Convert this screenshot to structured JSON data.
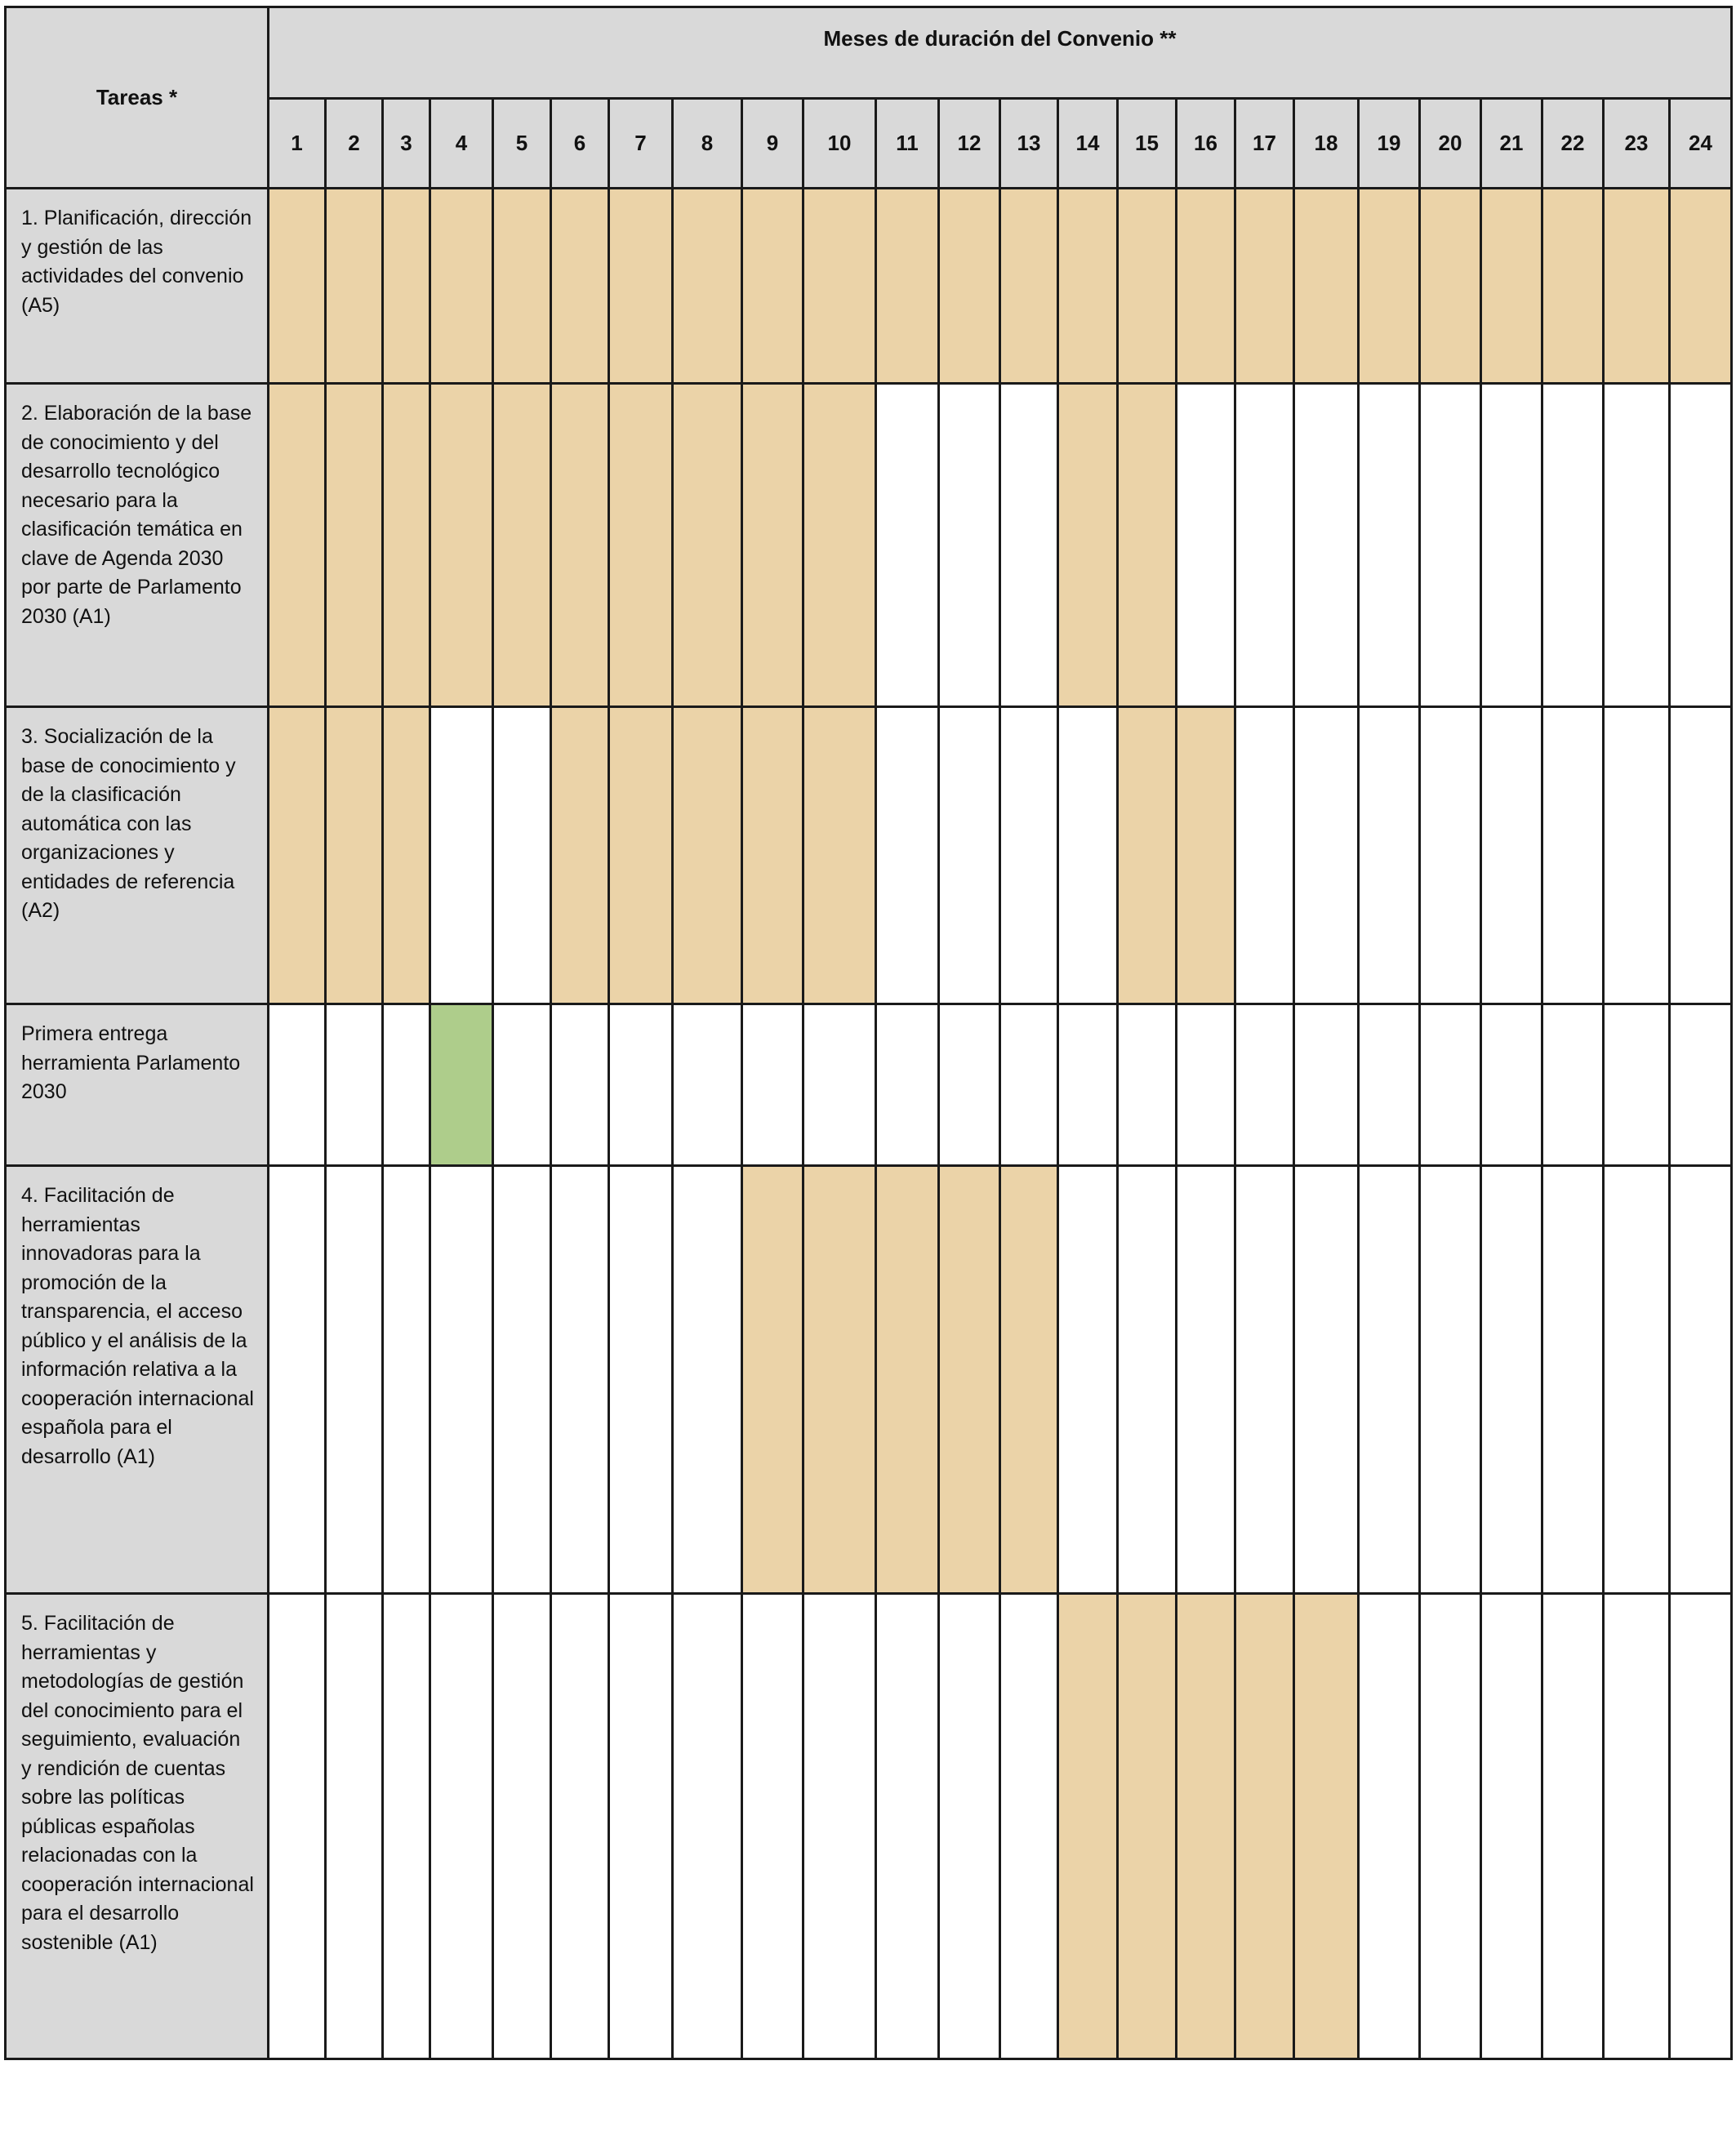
{
  "header": {
    "tasks_label": "Tareas *",
    "months_label": "Meses de duración del Convenio **"
  },
  "colors": {
    "header_bg": "#d9d9d9",
    "activity": "#ebd3a8",
    "milestone": "#aecd8b",
    "empty": "#ffffff"
  },
  "months": [
    "1",
    "2",
    "3",
    "4",
    "5",
    "6",
    "7",
    "8",
    "9",
    "10",
    "11",
    "12",
    "13",
    "14",
    "15",
    "16",
    "17",
    "18",
    "19",
    "20",
    "21",
    "22",
    "23",
    "24"
  ],
  "rows": [
    {
      "label": "1. Planificación, dirección y gestión de las actividades del convenio (A5)",
      "type": "activity",
      "active_months": [
        1,
        2,
        3,
        4,
        5,
        6,
        7,
        8,
        9,
        10,
        11,
        12,
        13,
        14,
        15,
        16,
        17,
        18,
        19,
        20,
        21,
        22,
        23,
        24
      ]
    },
    {
      "label": "2. Elaboración de la base de conocimiento y del desarrollo tecnológico necesario para la clasificación temática en clave de Agenda 2030 por parte de Parlamento 2030 (A1)",
      "type": "activity",
      "active_months": [
        1,
        2,
        3,
        4,
        5,
        6,
        7,
        8,
        9,
        10,
        14,
        15
      ]
    },
    {
      "label": "3. Socialización de la base de conocimiento y de la clasificación automática con las organizaciones y entidades de referencia (A2)",
      "type": "activity",
      "active_months": [
        1,
        2,
        3,
        6,
        7,
        8,
        9,
        10,
        15,
        16
      ]
    },
    {
      "label": "Primera entrega herramienta Parlamento 2030",
      "type": "milestone",
      "active_months": [
        4
      ]
    },
    {
      "label": "4. Facilitación de herramientas innovadoras para la promoción de la transparencia, el acceso público y el análisis de la información relativa a la cooperación internacional española para el desarrollo (A1)",
      "type": "activity",
      "active_months": [
        9,
        10,
        11,
        12,
        13
      ]
    },
    {
      "label": "5. Facilitación de herramientas y metodologías de gestión del conocimiento para el seguimiento, evaluación y rendición de cuentas sobre las políticas públicas españolas relacionadas con la cooperación internacional para el desarrollo sostenible (A1)",
      "type": "activity",
      "active_months": [
        14,
        15,
        16,
        17,
        18
      ]
    }
  ]
}
